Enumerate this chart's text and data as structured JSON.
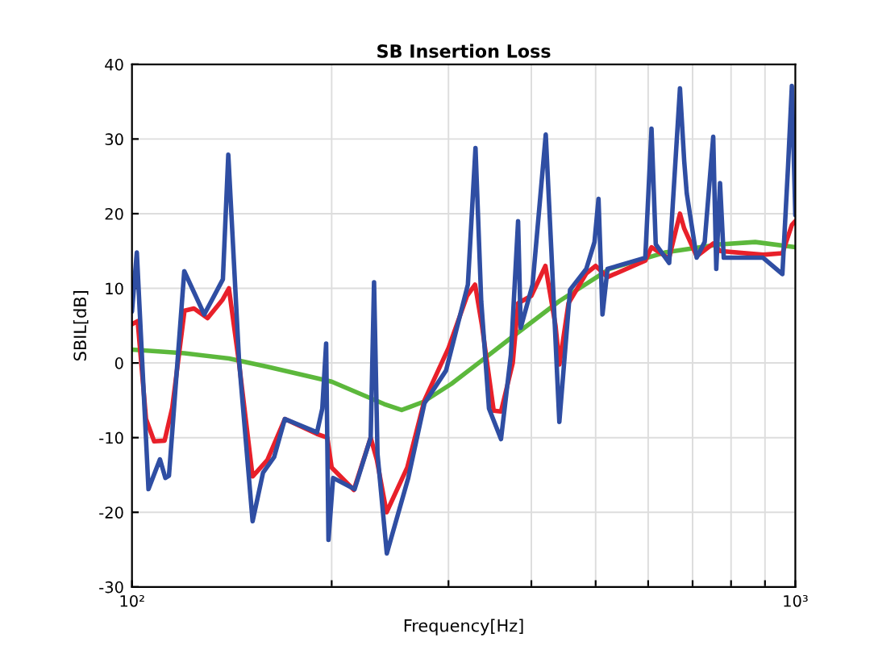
{
  "chart_data": {
    "type": "line",
    "title": "SB Insertion Loss",
    "xlabel": "Frequency[Hz]",
    "ylabel": "SBIL[dB]",
    "log": "x",
    "grid": true,
    "legend": false,
    "xlim": [
      100,
      1000
    ],
    "xticks": [
      {
        "value": 100,
        "label": "10²"
      },
      {
        "value": 200,
        "label": null
      },
      {
        "value": 300,
        "label": null
      },
      {
        "value": 400,
        "label": null
      },
      {
        "value": 500,
        "label": null
      },
      {
        "value": 600,
        "label": null
      },
      {
        "value": 700,
        "label": null
      },
      {
        "value": 800,
        "label": null
      },
      {
        "value": 900,
        "label": null
      },
      {
        "value": 1000,
        "label": "10³"
      }
    ],
    "ylim": [
      -30,
      40
    ],
    "yticks": [
      -30,
      -20,
      -10,
      0,
      10,
      20,
      30,
      40
    ],
    "series": [
      {
        "color": "#5cb83c",
        "x": [
          100,
          120,
          140,
          160,
          200,
          240,
          255,
          275,
          303,
          333,
          372,
          441,
          525,
          636,
          770,
          870,
          1000
        ],
        "values": [
          1.8,
          1.3,
          0.6,
          -0.5,
          -2.5,
          -5.5,
          -6.3,
          -5.2,
          -2.8,
          0,
          3.3,
          8.3,
          12.6,
          14.8,
          15.9,
          16.2,
          15.5
        ]
      },
      {
        "color": "#e8202a",
        "x": [
          100,
          102,
          105,
          108,
          112,
          115,
          120,
          124,
          130,
          137,
          140,
          145,
          152,
          160,
          170,
          190,
          197,
          200,
          216,
          229,
          234,
          242,
          260,
          276,
          300,
          320,
          329,
          337,
          351,
          360,
          375,
          382,
          400,
          420,
          435,
          441,
          455,
          484,
          500,
          521,
          594,
          607,
          645,
          670,
          680,
          710,
          752,
          770,
          894,
          956,
          988,
          1000
        ],
        "values": [
          5.2,
          5.6,
          -7.5,
          -10.5,
          -10.4,
          -6,
          7,
          7.3,
          6,
          8.5,
          10,
          0,
          -15.2,
          -13,
          -7.5,
          -9.5,
          -10,
          -14,
          -17,
          -10,
          -13,
          -20,
          -14,
          -5,
          2,
          9,
          10.5,
          5,
          -6.4,
          -6.5,
          0,
          8,
          9,
          13,
          5,
          -0.2,
          8,
          12,
          13,
          11.5,
          13.7,
          15.5,
          14,
          20,
          18,
          14.3,
          16,
          15,
          14.5,
          14.7,
          18.5,
          19
        ]
      },
      {
        "color": "#2f4ea3",
        "x": [
          100,
          101.7,
          105.9,
          110.2,
          112.3,
          113.7,
          119.9,
          128.5,
          137.1,
          139.7,
          145,
          152,
          157.6,
          163.8,
          170,
          190.1,
          193.6,
          196.2,
          197.8,
          201,
          216.6,
          229,
          231.7,
          234.5,
          242.2,
          260.9,
          276,
          297.5,
          320.9,
          329.5,
          336.1,
          345.3,
          360,
          372.6,
          382,
          385.5,
          401.7,
          420.5,
          428.5,
          440.8,
          457.5,
          484,
          498,
          505,
          512,
          521,
          594,
          607,
          616,
          645.4,
          670,
          680,
          686,
          710,
          730,
          752,
          760,
          770,
          780,
          894,
          956,
          975,
          988,
          1000
        ],
        "values": [
          6.9,
          14.8,
          -16.9,
          -12.9,
          -15.4,
          -15.1,
          12.3,
          6.5,
          11.2,
          27.9,
          0.4,
          -21.2,
          -14.7,
          -12.6,
          -7.5,
          -9.3,
          -6.1,
          2.6,
          -23.7,
          -15.4,
          -16.9,
          -10,
          10.8,
          -12.2,
          -25.5,
          -15.4,
          -5.4,
          -1,
          10.5,
          28.8,
          8.3,
          -6.1,
          -10.2,
          1.1,
          19,
          4.7,
          10.5,
          30.6,
          15.5,
          -7.9,
          9.8,
          12.6,
          16.2,
          22,
          6.5,
          12.6,
          14.1,
          31.4,
          15.9,
          13.4,
          36.8,
          27,
          22.7,
          14.1,
          16.2,
          30.3,
          12.6,
          24.1,
          14.1,
          14.1,
          11.9,
          26.3,
          37.1,
          19.8
        ]
      }
    ]
  }
}
